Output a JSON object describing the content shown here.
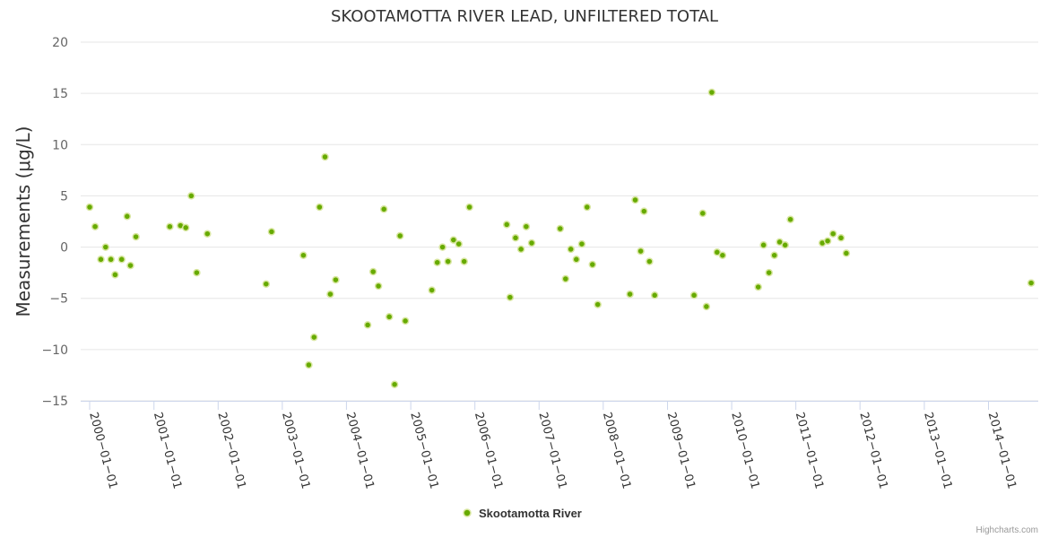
{
  "credits": "Highcharts.com",
  "chart_data": {
    "type": "scatter",
    "title": "SKOOTAMOTTA RIVER LEAD, UNFILTERED TOTAL",
    "xlabel": "",
    "ylabel": "Measurements (μg/L)",
    "ylim": [
      -15,
      20
    ],
    "yticks": [
      20,
      15,
      10,
      5,
      0,
      -5,
      -10,
      -15
    ],
    "grid": true,
    "legend_position": "bottom-center",
    "xticks": [
      "2000-01-01",
      "2001-01-01",
      "2002-01-01",
      "2003-01-01",
      "2004-01-01",
      "2005-01-01",
      "2006-01-01",
      "2007-01-01",
      "2008-01-01",
      "2009-01-01",
      "2010-01-01",
      "2011-01-01",
      "2012-01-01",
      "2013-01-01",
      "2014-01-01"
    ],
    "colors": {
      "marker": "#66aa00",
      "marker_border": "#d8e6a0"
    },
    "series": [
      {
        "name": "Skootamotta River",
        "points": [
          [
            "2000-01-01",
            3.9
          ],
          [
            "2000-02-01",
            2.0
          ],
          [
            "2000-03-05",
            -1.2
          ],
          [
            "2000-04-01",
            0.0
          ],
          [
            "2000-05-01",
            -1.2
          ],
          [
            "2000-05-25",
            -2.7
          ],
          [
            "2000-07-01",
            -1.2
          ],
          [
            "2000-08-01",
            3.0
          ],
          [
            "2000-08-20",
            -1.8
          ],
          [
            "2000-09-20",
            1.0
          ],
          [
            "2001-04-01",
            2.0
          ],
          [
            "2001-06-01",
            2.1
          ],
          [
            "2001-07-01",
            1.9
          ],
          [
            "2001-08-01",
            5.0
          ],
          [
            "2001-09-01",
            -2.5
          ],
          [
            "2001-11-01",
            1.3
          ],
          [
            "2002-10-01",
            -3.6
          ],
          [
            "2002-11-01",
            1.5
          ],
          [
            "2003-05-01",
            -0.8
          ],
          [
            "2003-06-01",
            -11.5
          ],
          [
            "2003-07-01",
            -8.8
          ],
          [
            "2003-08-01",
            3.9
          ],
          [
            "2003-09-01",
            8.8
          ],
          [
            "2003-10-01",
            -4.6
          ],
          [
            "2003-11-01",
            -3.2
          ],
          [
            "2004-05-01",
            -7.6
          ],
          [
            "2004-06-01",
            -2.4
          ],
          [
            "2004-07-01",
            -3.8
          ],
          [
            "2004-08-01",
            3.7
          ],
          [
            "2004-09-01",
            -6.8
          ],
          [
            "2004-10-01",
            -13.4
          ],
          [
            "2004-11-01",
            1.1
          ],
          [
            "2004-12-01",
            -7.2
          ],
          [
            "2005-05-01",
            -4.2
          ],
          [
            "2005-06-01",
            -1.5
          ],
          [
            "2005-07-01",
            0.0
          ],
          [
            "2005-08-01",
            -1.4
          ],
          [
            "2005-09-01",
            0.7
          ],
          [
            "2005-10-01",
            0.3
          ],
          [
            "2005-11-01",
            -1.4
          ],
          [
            "2005-12-01",
            3.9
          ],
          [
            "2006-07-01",
            2.2
          ],
          [
            "2006-07-20",
            -4.9
          ],
          [
            "2006-08-20",
            0.9
          ],
          [
            "2006-09-20",
            -0.2
          ],
          [
            "2006-10-20",
            2.0
          ],
          [
            "2006-11-20",
            0.4
          ],
          [
            "2007-05-01",
            1.8
          ],
          [
            "2007-06-01",
            -3.1
          ],
          [
            "2007-07-01",
            -0.2
          ],
          [
            "2007-08-01",
            -1.2
          ],
          [
            "2007-09-01",
            0.3
          ],
          [
            "2007-10-01",
            3.9
          ],
          [
            "2007-11-01",
            -1.7
          ],
          [
            "2007-12-01",
            -5.6
          ],
          [
            "2008-06-01",
            -4.6
          ],
          [
            "2008-07-01",
            4.6
          ],
          [
            "2008-08-01",
            -0.4
          ],
          [
            "2008-08-20",
            3.5
          ],
          [
            "2008-09-20",
            -1.4
          ],
          [
            "2008-10-20",
            -4.7
          ],
          [
            "2009-06-01",
            -4.7
          ],
          [
            "2009-07-20",
            3.3
          ],
          [
            "2009-08-10",
            -5.8
          ],
          [
            "2009-09-10",
            15.1
          ],
          [
            "2009-10-10",
            -0.5
          ],
          [
            "2009-11-10",
            -0.8
          ],
          [
            "2010-06-01",
            -3.9
          ],
          [
            "2010-07-01",
            0.2
          ],
          [
            "2010-08-01",
            -2.5
          ],
          [
            "2010-09-01",
            -0.8
          ],
          [
            "2010-10-01",
            0.5
          ],
          [
            "2010-11-01",
            0.2
          ],
          [
            "2010-12-01",
            2.7
          ],
          [
            "2011-06-01",
            0.4
          ],
          [
            "2011-07-01",
            0.6
          ],
          [
            "2011-08-01",
            1.3
          ],
          [
            "2011-09-15",
            0.9
          ],
          [
            "2011-10-15",
            -0.6
          ],
          [
            "2014-09-01",
            -3.5
          ]
        ]
      }
    ]
  }
}
